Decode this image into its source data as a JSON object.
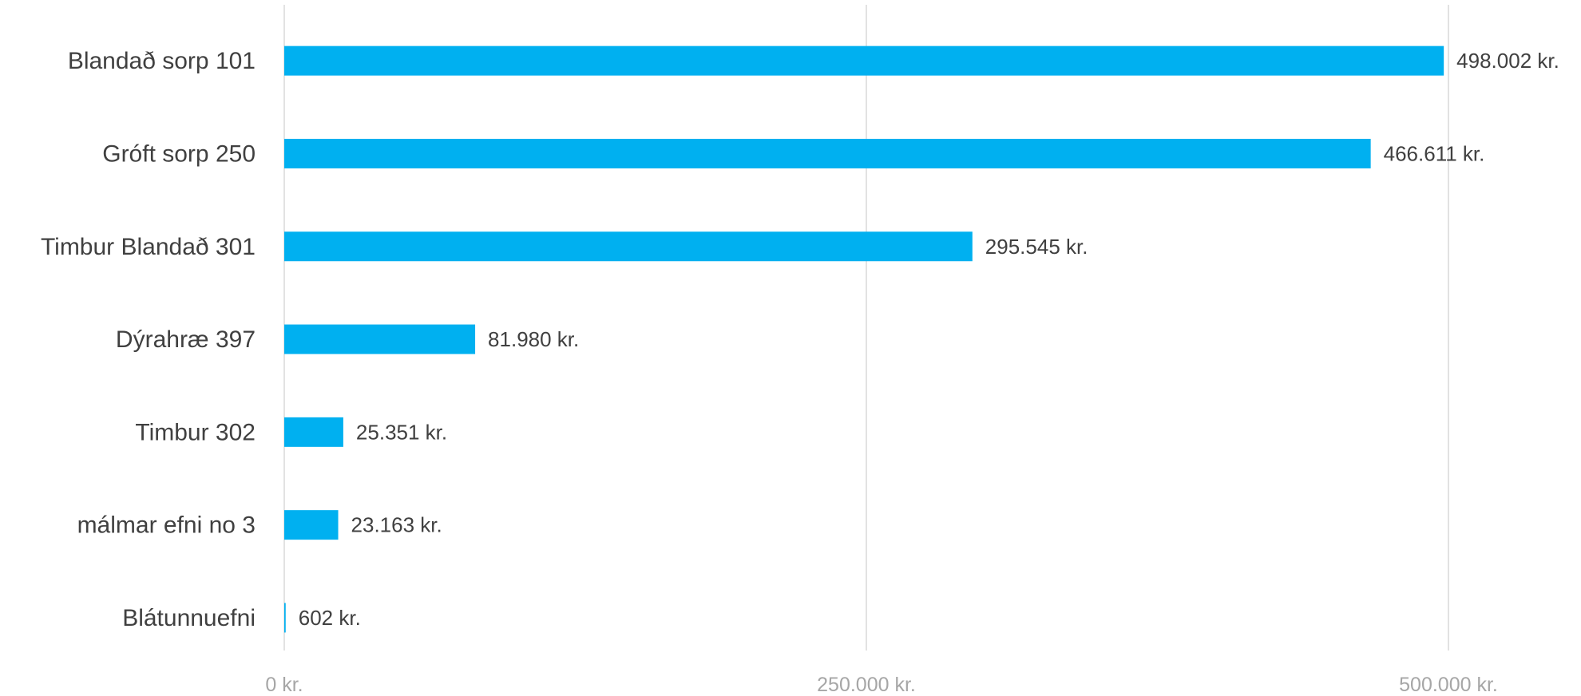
{
  "chart_data": {
    "type": "bar",
    "orientation": "horizontal",
    "categories": [
      "Blandað sorp 101",
      "Gróft sorp 250",
      "Timbur Blandað 301",
      "Dýrahræ 397",
      "Timbur 302",
      "málmar efni no 3",
      "Blátunnuefni"
    ],
    "values": [
      498002,
      466611,
      295545,
      81980,
      25351,
      23163,
      602
    ],
    "data_labels": [
      "498.002 kr.",
      "466.611 kr.",
      "295.545 kr.",
      "81.980 kr.",
      "25.351 kr.",
      "23.163 kr.",
      "602 kr."
    ],
    "x_ticks": [
      0,
      250000,
      500000
    ],
    "x_tick_labels": [
      "0 kr.",
      "250.000 kr.",
      "500.000 kr."
    ],
    "xlim": [
      0,
      500000
    ],
    "title": "",
    "xlabel": "",
    "ylabel": "",
    "grid": "vertical",
    "legend": "none",
    "colors": {
      "bar": "#00b0f0",
      "gridline": "#d9d9d9",
      "category_text": "#404040",
      "data_label_text": "#404040",
      "tick_text": "#a6a6a6"
    }
  }
}
